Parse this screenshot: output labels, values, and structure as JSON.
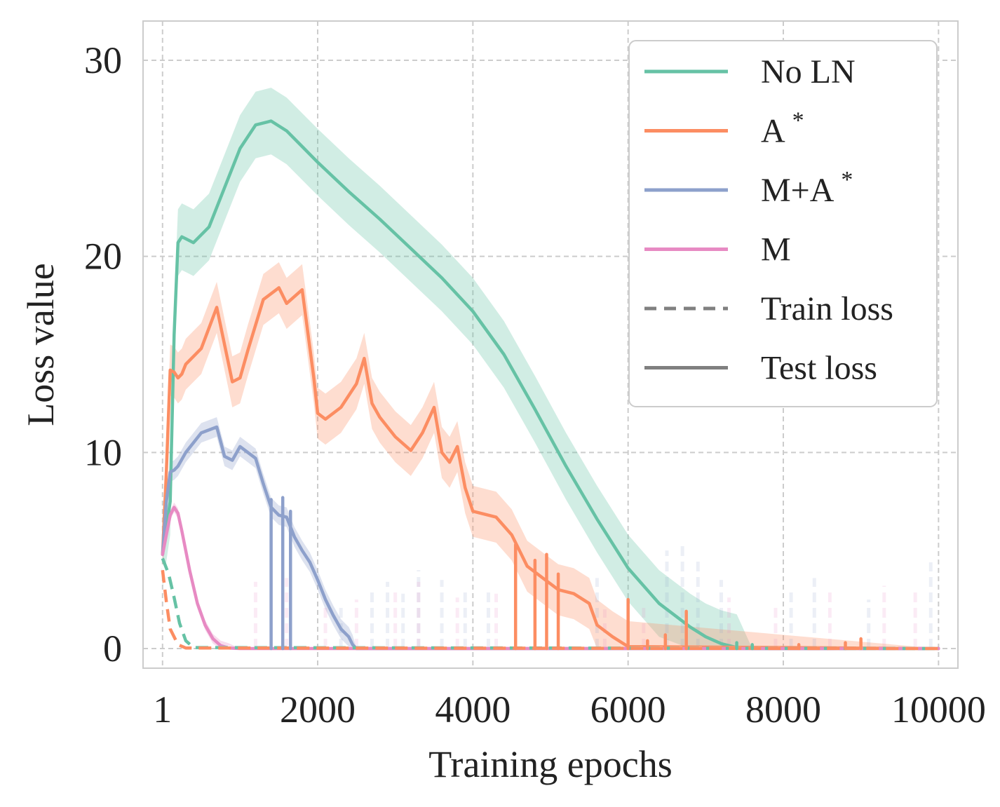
{
  "chart_data": {
    "type": "line",
    "xlabel": "Training epochs",
    "ylabel": "Loss value",
    "xlim": [
      -250,
      10250
    ],
    "ylim": [
      -1,
      32
    ],
    "xticks": [
      1,
      2000,
      4000,
      6000,
      8000,
      10000
    ],
    "xtick_labels": [
      "1",
      "2000",
      "4000",
      "6000",
      "8000",
      "10000"
    ],
    "yticks": [
      0,
      10,
      20,
      30
    ],
    "ytick_labels": [
      "0",
      "10",
      "20",
      "30"
    ],
    "grid": true,
    "legend_position": "top-right",
    "legend": [
      {
        "label": "No LN",
        "sup": "",
        "color": "#66c2a5",
        "style": "solid"
      },
      {
        "label": "A",
        "sup": "*",
        "color": "#fc8d62",
        "style": "solid"
      },
      {
        "label": "M+A",
        "sup": "*",
        "color": "#8da0cb",
        "style": "solid"
      },
      {
        "label": "M",
        "sup": "",
        "color": "#e78ac3",
        "style": "solid"
      },
      {
        "label": "Train loss",
        "sup": "",
        "color": "#808080",
        "style": "dashed"
      },
      {
        "label": "Test loss",
        "sup": "",
        "color": "#808080",
        "style": "solid"
      }
    ],
    "series": [
      {
        "key": "noln-test",
        "color": "#66c2a5",
        "style": "solid",
        "band_width": 1.7,
        "x": [
          1,
          100,
          150,
          200,
          250,
          300,
          400,
          600,
          800,
          1000,
          1200,
          1400,
          1600,
          1800,
          2000,
          2400,
          2800,
          3200,
          3600,
          4000,
          4400,
          4800,
          5200,
          5600,
          6000,
          6400,
          6800,
          7000,
          7200,
          7400,
          7600,
          8000,
          10000
        ],
        "y": [
          4.8,
          7.5,
          16.0,
          20.7,
          21.0,
          20.9,
          20.7,
          21.5,
          23.5,
          25.5,
          26.7,
          26.9,
          26.4,
          25.6,
          24.8,
          23.3,
          21.9,
          20.4,
          18.9,
          17.2,
          15.0,
          12.2,
          9.3,
          6.6,
          4.1,
          2.3,
          1.1,
          0.6,
          0.25,
          0.05,
          0.0,
          0.0,
          0.0
        ]
      },
      {
        "key": "a-test",
        "color": "#fc8d62",
        "style": "solid",
        "band_width": 1.3,
        "x": [
          1,
          50,
          100,
          150,
          200,
          250,
          300,
          500,
          700,
          900,
          1000,
          1100,
          1300,
          1500,
          1600,
          1800,
          1950,
          2000,
          2100,
          2300,
          2500,
          2600,
          2700,
          2800,
          3000,
          3200,
          3350,
          3500,
          3600,
          3700,
          3800,
          3900,
          4000,
          4300,
          4500,
          4700,
          4900,
          5100,
          5300,
          5500,
          5600,
          5800,
          6000,
          10000
        ],
        "y": [
          4.8,
          9.0,
          14.2,
          14.1,
          13.8,
          14.0,
          14.5,
          15.3,
          17.4,
          13.6,
          13.8,
          15.2,
          17.8,
          18.4,
          17.6,
          18.3,
          13.8,
          12.0,
          11.7,
          12.3,
          13.5,
          14.8,
          12.5,
          11.8,
          10.8,
          10.1,
          11.0,
          12.3,
          10.0,
          9.5,
          10.3,
          8.2,
          7.0,
          6.7,
          5.8,
          4.2,
          3.6,
          3.0,
          2.8,
          2.3,
          1.2,
          0.6,
          0.1,
          0.0
        ]
      },
      {
        "key": "ma-test",
        "color": "#8da0cb",
        "style": "solid",
        "band_width": 0.5,
        "x": [
          1,
          50,
          100,
          150,
          200,
          300,
          500,
          700,
          800,
          900,
          1000,
          1100,
          1200,
          1300,
          1400,
          1500,
          1600,
          1700,
          1800,
          1900,
          2000,
          2100,
          2200,
          2300,
          2400,
          2450,
          2500,
          10000
        ],
        "y": [
          4.8,
          7.5,
          9.0,
          9.1,
          9.3,
          10.0,
          11.0,
          11.3,
          9.8,
          9.6,
          10.3,
          10.0,
          9.7,
          8.4,
          7.2,
          6.8,
          6.7,
          5.7,
          5.0,
          4.4,
          3.5,
          2.5,
          1.7,
          1.0,
          0.6,
          0.2,
          0.0,
          0.0
        ]
      },
      {
        "key": "m-test",
        "color": "#e78ac3",
        "style": "solid",
        "band_width": 0.25,
        "x": [
          1,
          100,
          150,
          200,
          250,
          350,
          450,
          550,
          650,
          750,
          850,
          1000,
          10000
        ],
        "y": [
          4.8,
          6.8,
          7.2,
          6.9,
          6.0,
          4.0,
          2.3,
          1.2,
          0.5,
          0.15,
          0.03,
          0.0,
          0.0
        ]
      },
      {
        "key": "ma-train",
        "color": "#ffffff",
        "style": "dashed",
        "band_width": 0,
        "x": [
          1,
          60,
          120,
          180,
          250,
          350,
          10000
        ],
        "y": [
          4.3,
          3.2,
          2.1,
          1.1,
          0.4,
          0.05,
          0.0
        ]
      },
      {
        "key": "noln-train",
        "color": "#66c2a5",
        "style": "dashed",
        "band_width": 0,
        "x": [
          1,
          80,
          150,
          220,
          300,
          400,
          10000
        ],
        "y": [
          4.6,
          3.8,
          2.6,
          1.3,
          0.4,
          0.05,
          0.0
        ]
      },
      {
        "key": "a-train",
        "color": "#fc8d62",
        "style": "dashed",
        "band_width": 0,
        "x": [
          1,
          50,
          100,
          200,
          300,
          10000
        ],
        "y": [
          4.0,
          2.4,
          1.0,
          0.2,
          0.03,
          0.0
        ]
      }
    ],
    "spikes": [
      {
        "series": "a-test",
        "x": 4550,
        "y": 5.3
      },
      {
        "series": "a-test",
        "x": 4800,
        "y": 4.5
      },
      {
        "series": "a-test",
        "x": 4950,
        "y": 4.8
      },
      {
        "series": "a-test",
        "x": 5100,
        "y": 3.8
      },
      {
        "series": "a-test",
        "x": 6000,
        "y": 2.5
      },
      {
        "series": "a-test",
        "x": 6250,
        "y": 0.4
      },
      {
        "series": "a-test",
        "x": 6480,
        "y": 0.7
      },
      {
        "series": "a-test",
        "x": 6750,
        "y": 1.9
      },
      {
        "series": "a-test",
        "x": 8200,
        "y": 0.2
      },
      {
        "series": "a-test",
        "x": 8800,
        "y": 0.3
      },
      {
        "series": "a-test",
        "x": 9000,
        "y": 0.5
      },
      {
        "series": "ma-test",
        "x": 1400,
        "y": 7.6
      },
      {
        "series": "ma-test",
        "x": 1550,
        "y": 7.7
      },
      {
        "series": "ma-test",
        "x": 1650,
        "y": 7.0
      },
      {
        "series": "noln-test",
        "x": 7400,
        "y": 0.3
      },
      {
        "series": "noln-test",
        "x": 7600,
        "y": 0.2
      }
    ],
    "noise_bars": [
      {
        "series": "ma-test",
        "x": 2300,
        "y": 2.2
      },
      {
        "series": "ma-test",
        "x": 2700,
        "y": 3.0
      },
      {
        "series": "ma-test",
        "x": 2900,
        "y": 3.4
      },
      {
        "series": "ma-test",
        "x": 3100,
        "y": 2.8
      },
      {
        "series": "ma-test",
        "x": 3300,
        "y": 4.0
      },
      {
        "series": "ma-test",
        "x": 3600,
        "y": 3.5
      },
      {
        "series": "ma-test",
        "x": 3900,
        "y": 2.9
      },
      {
        "series": "ma-test",
        "x": 4200,
        "y": 3.1
      },
      {
        "series": "ma-test",
        "x": 5600,
        "y": 3.6
      },
      {
        "series": "ma-test",
        "x": 6500,
        "y": 5.0
      },
      {
        "series": "ma-test",
        "x": 6700,
        "y": 5.5
      },
      {
        "series": "ma-test",
        "x": 6900,
        "y": 4.5
      },
      {
        "series": "ma-test",
        "x": 7200,
        "y": 3.5
      },
      {
        "series": "ma-test",
        "x": 8100,
        "y": 3.0
      },
      {
        "series": "ma-test",
        "x": 8400,
        "y": 3.6
      },
      {
        "series": "ma-test",
        "x": 9100,
        "y": 2.5
      },
      {
        "series": "ma-test",
        "x": 9900,
        "y": 4.4
      },
      {
        "series": "m-test",
        "x": 1200,
        "y": 3.4
      },
      {
        "series": "m-test",
        "x": 1600,
        "y": 3.6
      },
      {
        "series": "m-test",
        "x": 2100,
        "y": 2.2
      },
      {
        "series": "m-test",
        "x": 2500,
        "y": 2.5
      },
      {
        "series": "m-test",
        "x": 3000,
        "y": 3.0
      },
      {
        "series": "m-test",
        "x": 3300,
        "y": 3.4
      },
      {
        "series": "m-test",
        "x": 3800,
        "y": 2.6
      },
      {
        "series": "m-test",
        "x": 4300,
        "y": 2.8
      },
      {
        "series": "m-test",
        "x": 5700,
        "y": 2.0
      },
      {
        "series": "m-test",
        "x": 6200,
        "y": 2.3
      },
      {
        "series": "m-test",
        "x": 7300,
        "y": 2.6
      },
      {
        "series": "m-test",
        "x": 7900,
        "y": 2.2
      },
      {
        "series": "m-test",
        "x": 8600,
        "y": 2.9
      },
      {
        "series": "m-test",
        "x": 9300,
        "y": 3.2
      },
      {
        "series": "m-test",
        "x": 9700,
        "y": 3.0
      }
    ]
  }
}
